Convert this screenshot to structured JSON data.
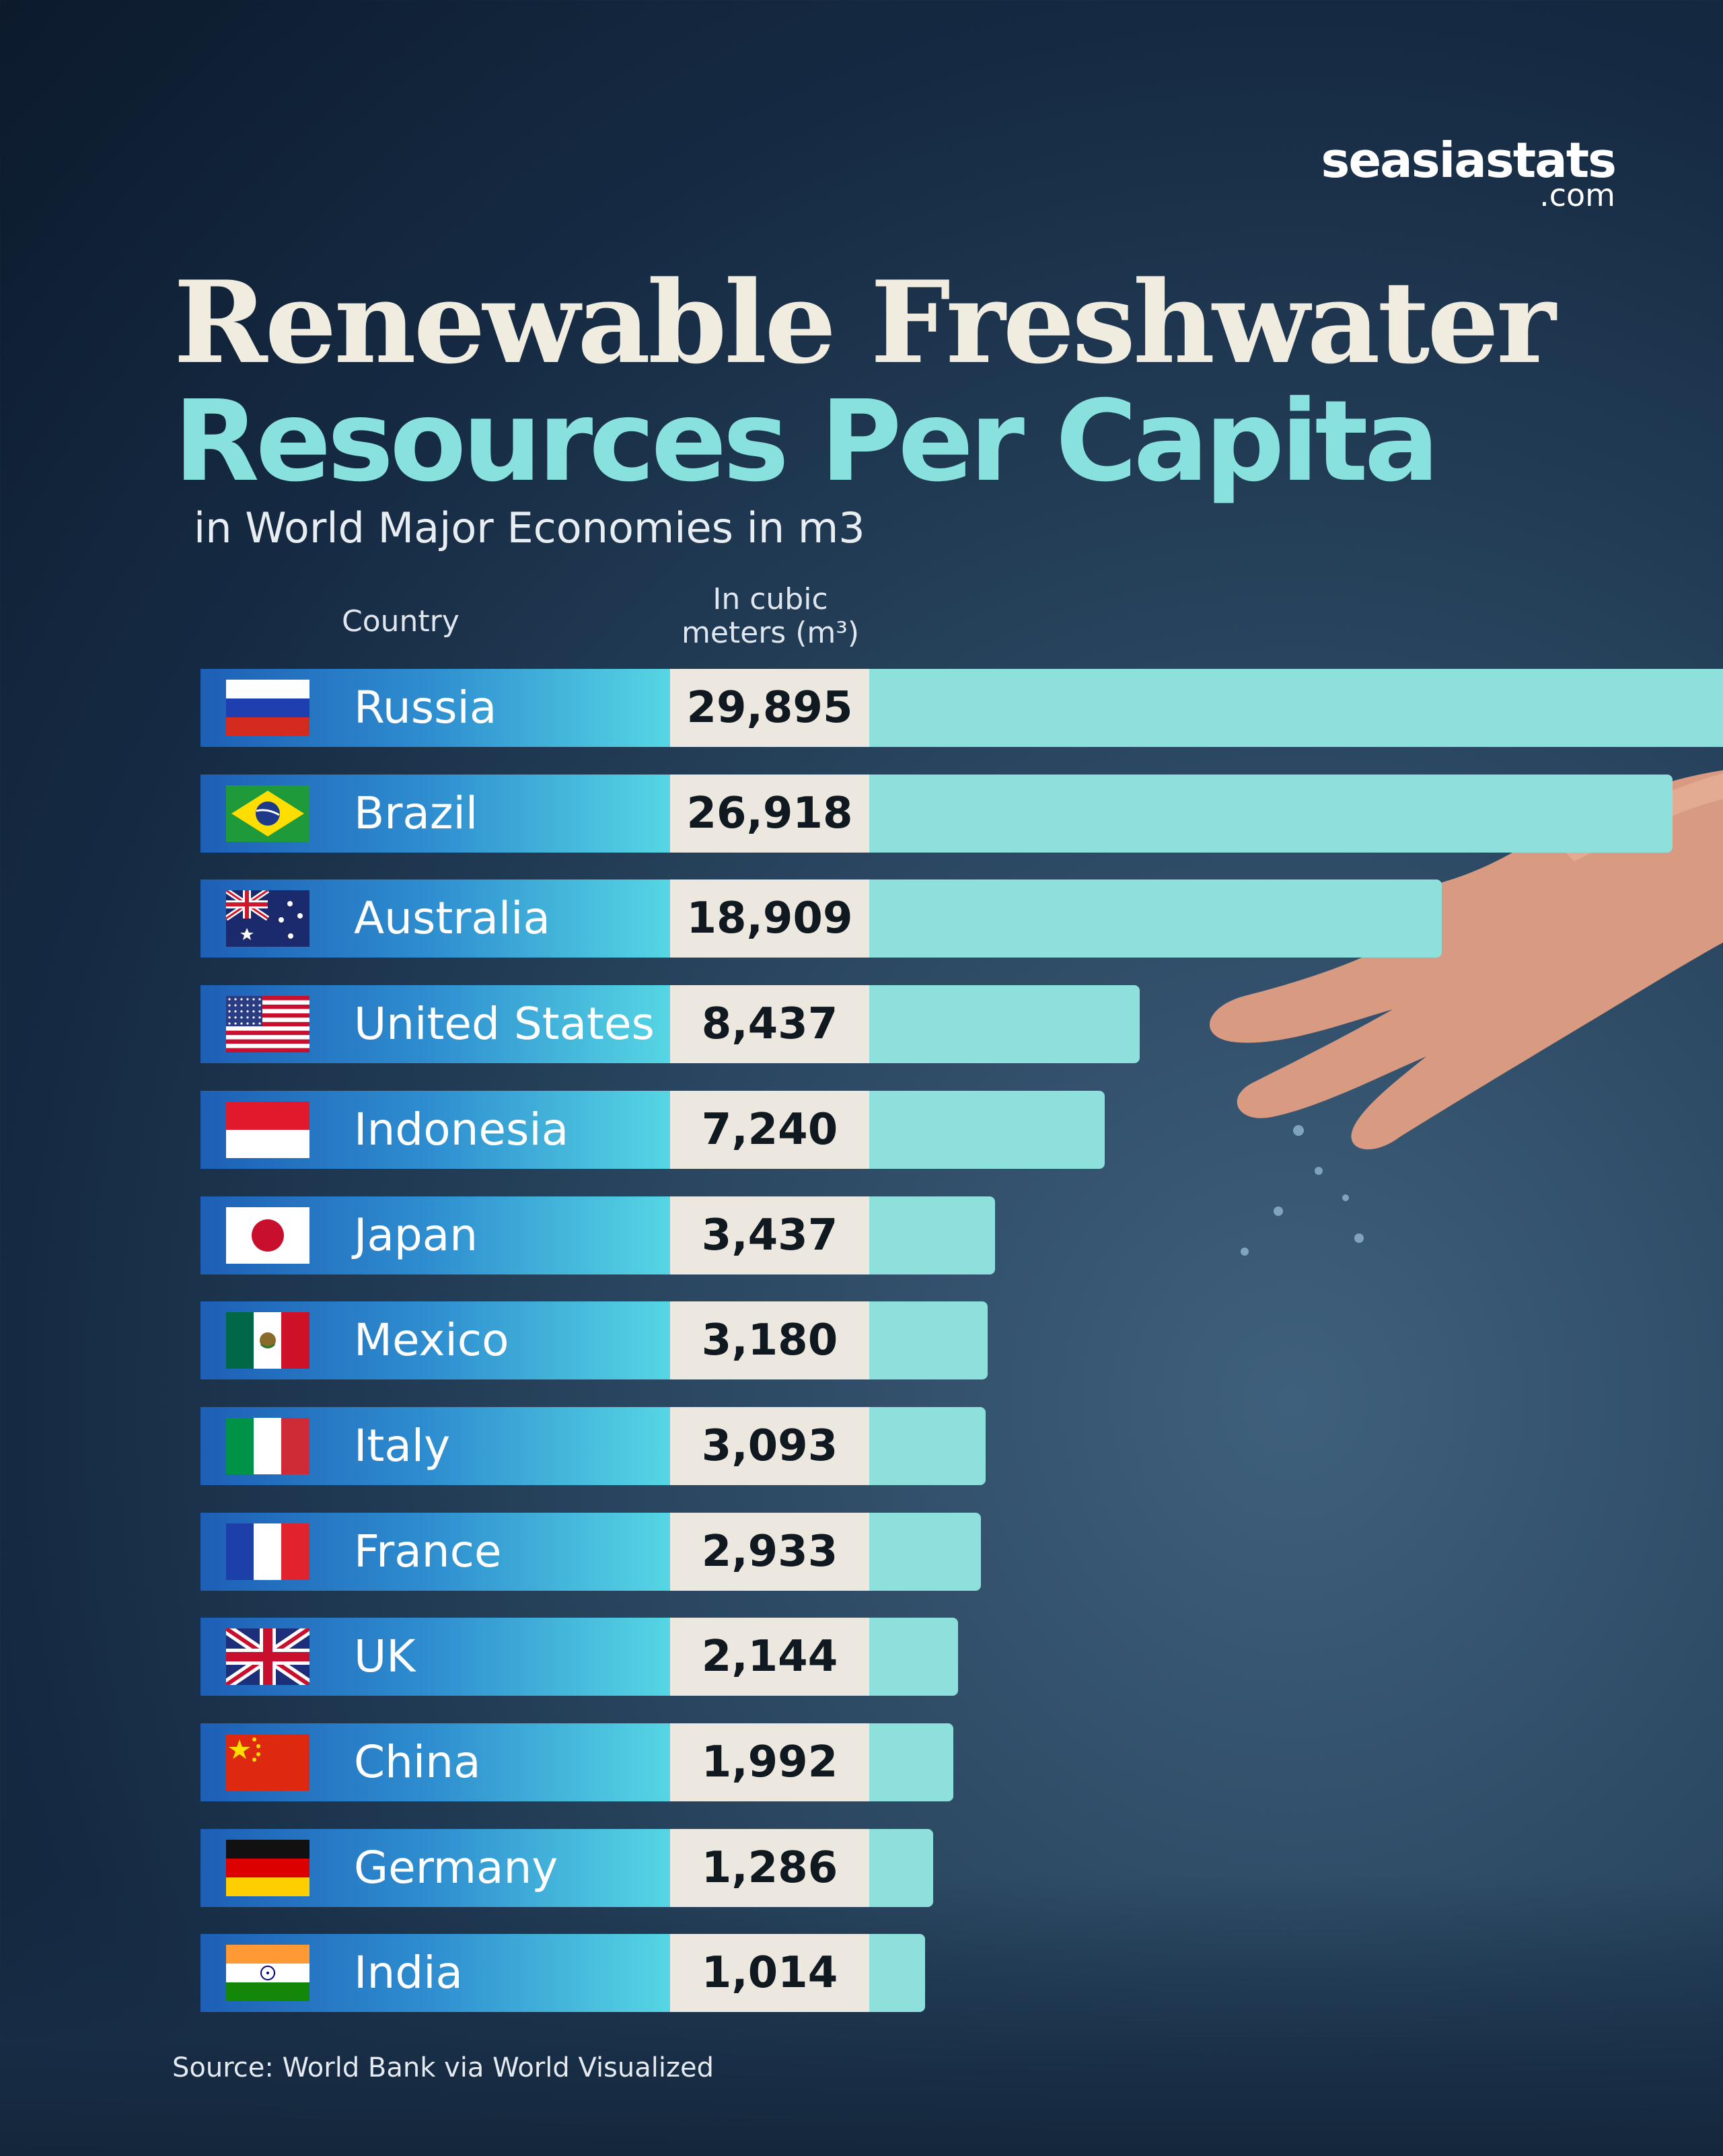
{
  "brand": {
    "name": "seasiastats",
    "suffix": ".com"
  },
  "title_line1": "Renewable Freshwater",
  "title_line2": "Resources Per Capita",
  "subtitle": "in World Major Economies in m3",
  "headers": {
    "country": "Country",
    "value_line1": "In cubic",
    "value_line2": "meters (m³)"
  },
  "source": "Source: World Bank via World Visualized",
  "colors": {
    "accent": "#89e1dd",
    "bar": "#8de0dc",
    "valbox": "#ece8df",
    "title": "#f1ece0"
  },
  "chart_data": {
    "type": "bar",
    "orientation": "horizontal",
    "title": "Renewable Freshwater Resources Per Capita",
    "subtitle": "in World Major Economies in m3",
    "categories": [
      "Russia",
      "Brazil",
      "Australia",
      "United States",
      "Indonesia",
      "Japan",
      "Mexico",
      "Italy",
      "France",
      "UK",
      "China",
      "Germany",
      "India"
    ],
    "values": [
      29895,
      26918,
      18909,
      8437,
      7240,
      3437,
      3180,
      3093,
      2933,
      2144,
      1992,
      1286,
      1014
    ],
    "value_labels": [
      "29,895",
      "26,918",
      "18,909",
      "8,437",
      "7,240",
      "3,437",
      "3,180",
      "3,093",
      "2,933",
      "2,144",
      "1,992",
      "1,286",
      "1,014"
    ],
    "flags": [
      "russia-flag-icon",
      "brazil-flag-icon",
      "australia-flag-icon",
      "us-flag-icon",
      "indonesia-flag-icon",
      "japan-flag-icon",
      "mexico-flag-icon",
      "italy-flag-icon",
      "france-flag-icon",
      "uk-flag-icon",
      "china-flag-icon",
      "germany-flag-icon",
      "india-flag-icon"
    ]
  }
}
